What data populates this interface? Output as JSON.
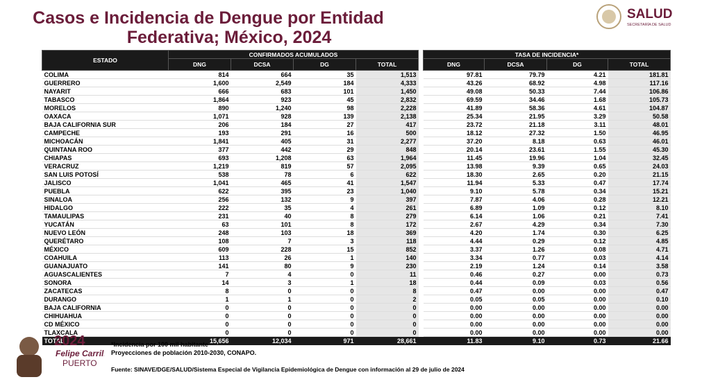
{
  "header": {
    "title_lines": [
      "Casos e Incidencia de Dengue por Entidad",
      "Federativa; México, 2024"
    ],
    "logo_text": "SALUD",
    "logo_subtext": "SECRETARÍA DE SALUD"
  },
  "table": {
    "state_header": "ESTADO",
    "groups": [
      "CONFIRMADOS ACUMULADOS",
      "TASA DE INCIDENCIA*"
    ],
    "columns": [
      "DNG",
      "DCSA",
      "DG",
      "TOTAL",
      "DNG",
      "DCSA",
      "DG",
      "TOTAL"
    ],
    "rows": [
      [
        "COLIMA",
        "814",
        "664",
        "35",
        "1,513",
        "97.81",
        "79.79",
        "4.21",
        "181.81"
      ],
      [
        "GUERRERO",
        "1,600",
        "2,549",
        "184",
        "4,333",
        "43.26",
        "68.92",
        "4.98",
        "117.16"
      ],
      [
        "NAYARIT",
        "666",
        "683",
        "101",
        "1,450",
        "49.08",
        "50.33",
        "7.44",
        "106.86"
      ],
      [
        "TABASCO",
        "1,864",
        "923",
        "45",
        "2,832",
        "69.59",
        "34.46",
        "1.68",
        "105.73"
      ],
      [
        "MORELOS",
        "890",
        "1,240",
        "98",
        "2,228",
        "41.89",
        "58.36",
        "4.61",
        "104.87"
      ],
      [
        "OAXACA",
        "1,071",
        "928",
        "139",
        "2,138",
        "25.34",
        "21.95",
        "3.29",
        "50.58"
      ],
      [
        "BAJA CALIFORNIA SUR",
        "206",
        "184",
        "27",
        "417",
        "23.72",
        "21.18",
        "3.11",
        "48.01"
      ],
      [
        "CAMPECHE",
        "193",
        "291",
        "16",
        "500",
        "18.12",
        "27.32",
        "1.50",
        "46.95"
      ],
      [
        "MICHOACÁN",
        "1,841",
        "405",
        "31",
        "2,277",
        "37.20",
        "8.18",
        "0.63",
        "46.01"
      ],
      [
        "QUINTANA ROO",
        "377",
        "442",
        "29",
        "848",
        "20.14",
        "23.61",
        "1.55",
        "45.30"
      ],
      [
        "CHIAPAS",
        "693",
        "1,208",
        "63",
        "1,964",
        "11.45",
        "19.96",
        "1.04",
        "32.45"
      ],
      [
        "VERACRUZ",
        "1,219",
        "819",
        "57",
        "2,095",
        "13.98",
        "9.39",
        "0.65",
        "24.03"
      ],
      [
        "SAN LUIS POTOSÍ",
        "538",
        "78",
        "6",
        "622",
        "18.30",
        "2.65",
        "0.20",
        "21.15"
      ],
      [
        "JALISCO",
        "1,041",
        "465",
        "41",
        "1,547",
        "11.94",
        "5.33",
        "0.47",
        "17.74"
      ],
      [
        "PUEBLA",
        "622",
        "395",
        "23",
        "1,040",
        "9.10",
        "5.78",
        "0.34",
        "15.21"
      ],
      [
        "SINALOA",
        "256",
        "132",
        "9",
        "397",
        "7.87",
        "4.06",
        "0.28",
        "12.21"
      ],
      [
        "HIDALGO",
        "222",
        "35",
        "4",
        "261",
        "6.89",
        "1.09",
        "0.12",
        "8.10"
      ],
      [
        "TAMAULIPAS",
        "231",
        "40",
        "8",
        "279",
        "6.14",
        "1.06",
        "0.21",
        "7.41"
      ],
      [
        "YUCATÁN",
        "63",
        "101",
        "8",
        "172",
        "2.67",
        "4.29",
        "0.34",
        "7.30"
      ],
      [
        "NUEVO LEÓN",
        "248",
        "103",
        "18",
        "369",
        "4.20",
        "1.74",
        "0.30",
        "6.25"
      ],
      [
        "QUERÉTARO",
        "108",
        "7",
        "3",
        "118",
        "4.44",
        "0.29",
        "0.12",
        "4.85"
      ],
      [
        "MÉXICO",
        "609",
        "228",
        "15",
        "852",
        "3.37",
        "1.26",
        "0.08",
        "4.71"
      ],
      [
        "COAHUILA",
        "113",
        "26",
        "1",
        "140",
        "3.34",
        "0.77",
        "0.03",
        "4.14"
      ],
      [
        "GUANAJUATO",
        "141",
        "80",
        "9",
        "230",
        "2.19",
        "1.24",
        "0.14",
        "3.58"
      ],
      [
        "AGUASCALIENTES",
        "7",
        "4",
        "0",
        "11",
        "0.46",
        "0.27",
        "0.00",
        "0.73"
      ],
      [
        "SONORA",
        "14",
        "3",
        "1",
        "18",
        "0.44",
        "0.09",
        "0.03",
        "0.56"
      ],
      [
        "ZACATECAS",
        "8",
        "0",
        "0",
        "8",
        "0.47",
        "0.00",
        "0.00",
        "0.47"
      ],
      [
        "DURANGO",
        "1",
        "1",
        "0",
        "2",
        "0.05",
        "0.05",
        "0.00",
        "0.10"
      ],
      [
        "BAJA CALIFORNIA",
        "0",
        "0",
        "0",
        "0",
        "0.00",
        "0.00",
        "0.00",
        "0.00"
      ],
      [
        "CHIHUAHUA",
        "0",
        "0",
        "0",
        "0",
        "0.00",
        "0.00",
        "0.00",
        "0.00"
      ],
      [
        "CD MÉXICO",
        "0",
        "0",
        "0",
        "0",
        "0.00",
        "0.00",
        "0.00",
        "0.00"
      ],
      [
        "TLAXCALA",
        "0",
        "0",
        "0",
        "0",
        "0.00",
        "0.00",
        "0.00",
        "0.00"
      ]
    ],
    "total": [
      "TOTAL",
      "15,656",
      "12,034",
      "971",
      "28,661",
      "11.83",
      "9.10",
      "0.73",
      "21.66"
    ]
  },
  "notes": [
    "*Incidencia por 100 mil habitante",
    "Proyecciones de población 2010-2030,  CONAPO."
  ],
  "source": "Fuente: SINAVE/DGE/SALUD/Sistema Especial de Vigilancia Epidemiológica de Dengue con información al 29 de julio de 2024",
  "footer_logo": {
    "year": "2024",
    "name": "Felipe Carrillo",
    "surname": "PUERTO"
  }
}
